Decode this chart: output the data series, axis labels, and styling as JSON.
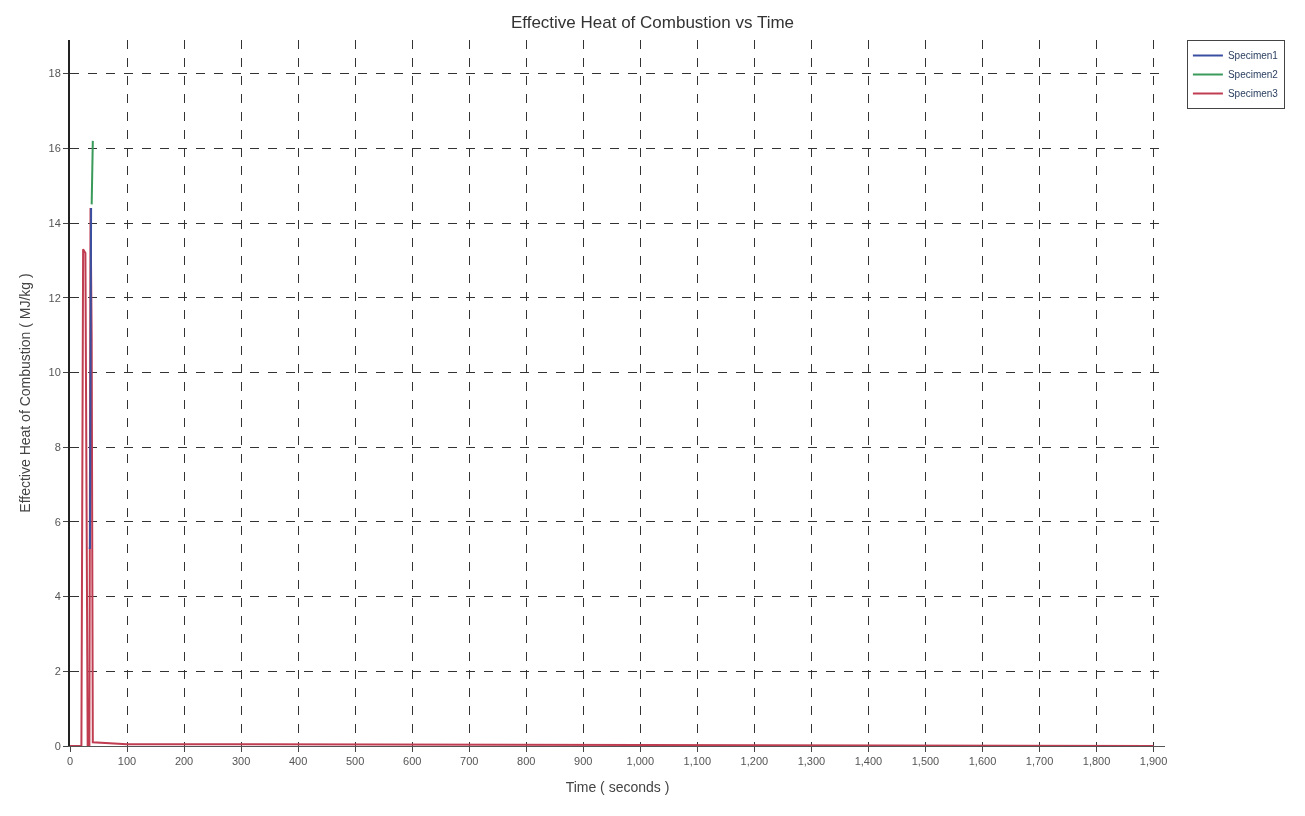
{
  "chart_data": {
    "type": "line",
    "title": "Effective Heat of Combustion vs Time",
    "xlabel": "Time ( seconds )",
    "ylabel": "Effective Heat of Combustion ( MJ/kg )",
    "xlim": [
      0,
      1920
    ],
    "ylim": [
      0,
      18.9
    ],
    "xticks": [
      0,
      100,
      200,
      300,
      400,
      500,
      600,
      700,
      800,
      900,
      {
        "value": 1000,
        "label": "1,000"
      },
      {
        "value": 1100,
        "label": "1,100"
      },
      {
        "value": 1200,
        "label": "1,200"
      },
      {
        "value": 1300,
        "label": "1,300"
      },
      {
        "value": 1400,
        "label": "1,400"
      },
      {
        "value": 1500,
        "label": "1,500"
      },
      {
        "value": 1600,
        "label": "1,600"
      },
      {
        "value": 1700,
        "label": "1,700"
      },
      {
        "value": 1800,
        "label": "1,800"
      },
      {
        "value": 1900,
        "label": "1,900"
      }
    ],
    "yticks": [
      0,
      2,
      4,
      6,
      8,
      10,
      12,
      14,
      16,
      18
    ],
    "grid": true,
    "legend": "top right",
    "line_style": "solid",
    "series": [
      {
        "name": "Specimen1",
        "color": "#3a4fa0",
        "x": [
          33,
          35,
          37
        ],
        "values": [
          5.3,
          5.3,
          14.4
        ]
      },
      {
        "name": "Specimen2",
        "color": "#3a9a5a",
        "x": [
          38,
          40
        ],
        "values": [
          14.5,
          16.2
        ]
      },
      {
        "name": "Specimen3",
        "color": "#c03c50",
        "x": [
          0,
          20,
          23,
          27,
          31,
          34,
          36,
          38,
          40,
          100,
          1000,
          1900
        ],
        "values": [
          0,
          0,
          13.3,
          13.2,
          0,
          0,
          14.4,
          10.9,
          0.1,
          0.05,
          0.03,
          0
        ]
      }
    ]
  }
}
